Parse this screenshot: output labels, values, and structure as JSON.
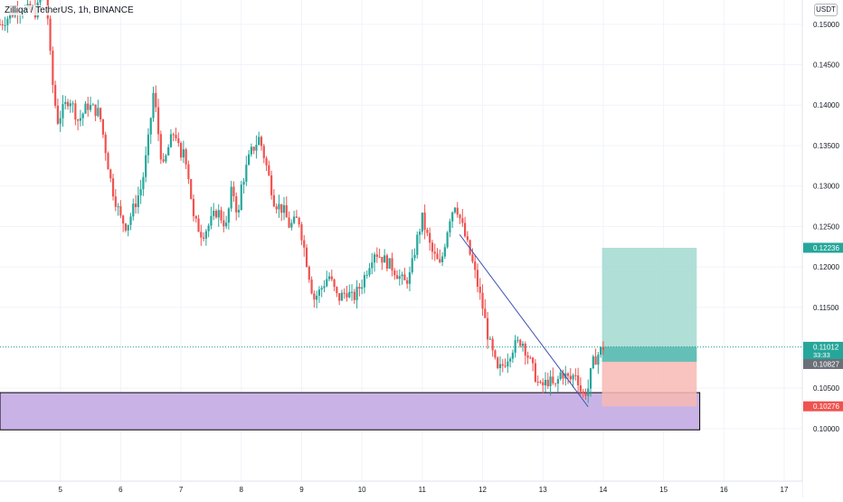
{
  "header": {
    "title": "Zilliqa / TetherUS, 1h, BINANCE",
    "currency": "USDT"
  },
  "colors": {
    "up": "#26a69a",
    "down": "#ef5350",
    "zone_fill": "#c9b3e6",
    "zone_border": "#000000",
    "trendline": "#3f51b5",
    "target_fill": "#a7dcd3",
    "stop_fill": "#f8b8b4",
    "axis_text": "#131722",
    "grid": "#f0f3fa"
  },
  "chart_data": {
    "type": "candlestick",
    "x_ticks": [
      "5",
      "6",
      "7",
      "8",
      "9",
      "10",
      "11",
      "12",
      "13",
      "14",
      "15",
      "16",
      "17"
    ],
    "y_ticks": [
      "0.15000",
      "0.14500",
      "0.14000",
      "0.13500",
      "0.13000",
      "0.12500",
      "0.12000",
      "0.11500",
      "0.11000",
      "0.10500",
      "0.10000"
    ],
    "x_range": [
      4.0,
      17.3
    ],
    "y_range": [
      0.0935,
      0.153
    ],
    "price_labels": [
      {
        "kind": "target",
        "text": "0.12236",
        "value": 0.12236,
        "color": "#26a69a"
      },
      {
        "kind": "last",
        "text": "0.11012",
        "value": 0.11012,
        "color": "#26a69a",
        "extra": "33:33"
      },
      {
        "kind": "entry",
        "text": "0.10827",
        "value": 0.10827,
        "color": "#6b6f78"
      },
      {
        "kind": "stop",
        "text": "0.10276",
        "value": 0.10276,
        "color": "#ef5350"
      }
    ],
    "last_price": 0.11012,
    "position": {
      "x_start": 13.98,
      "x_end": 15.55,
      "entry": 0.10827,
      "target": 0.12236,
      "stop": 0.10276
    },
    "demand_zone": {
      "x_start": 4.0,
      "x_end": 15.6,
      "top": 0.10445,
      "bottom": 0.09985
    },
    "trendline": {
      "x1": 11.62,
      "y1": 0.124,
      "x2": 13.75,
      "y2": 0.1027
    },
    "price_path": [
      [
        4.0,
        0.15
      ],
      [
        4.3,
        0.152
      ],
      [
        4.6,
        0.1515
      ],
      [
        4.75,
        0.155
      ],
      [
        4.8,
        0.15
      ],
      [
        4.85,
        0.144
      ],
      [
        4.95,
        0.138
      ],
      [
        5.15,
        0.141
      ],
      [
        5.3,
        0.138
      ],
      [
        5.45,
        0.14
      ],
      [
        5.65,
        0.139
      ],
      [
        5.75,
        0.1345
      ],
      [
        5.85,
        0.13
      ],
      [
        6.0,
        0.126
      ],
      [
        6.1,
        0.125
      ],
      [
        6.2,
        0.127
      ],
      [
        6.35,
        0.13
      ],
      [
        6.45,
        0.135
      ],
      [
        6.55,
        0.142
      ],
      [
        6.6,
        0.138
      ],
      [
        6.7,
        0.132
      ],
      [
        6.8,
        0.135
      ],
      [
        6.9,
        0.137
      ],
      [
        7.0,
        0.133
      ],
      [
        7.05,
        0.135
      ],
      [
        7.15,
        0.13
      ],
      [
        7.2,
        0.126
      ],
      [
        7.35,
        0.124
      ],
      [
        7.45,
        0.125
      ],
      [
        7.6,
        0.127
      ],
      [
        7.75,
        0.125
      ],
      [
        7.85,
        0.13
      ],
      [
        7.95,
        0.126
      ],
      [
        8.0,
        0.13
      ],
      [
        8.15,
        0.134
      ],
      [
        8.3,
        0.136
      ],
      [
        8.4,
        0.133
      ],
      [
        8.55,
        0.128
      ],
      [
        8.7,
        0.127
      ],
      [
        8.8,
        0.125
      ],
      [
        8.95,
        0.126
      ],
      [
        9.1,
        0.12
      ],
      [
        9.2,
        0.116
      ],
      [
        9.3,
        0.117
      ],
      [
        9.45,
        0.119
      ],
      [
        9.6,
        0.116
      ],
      [
        9.75,
        0.117
      ],
      [
        9.85,
        0.116
      ],
      [
        10.0,
        0.118
      ],
      [
        10.1,
        0.12
      ],
      [
        10.2,
        0.122
      ],
      [
        10.35,
        0.121
      ],
      [
        10.5,
        0.12
      ],
      [
        10.7,
        0.118
      ],
      [
        10.8,
        0.119
      ],
      [
        10.9,
        0.123
      ],
      [
        11.0,
        0.126
      ],
      [
        11.15,
        0.122
      ],
      [
        11.3,
        0.12
      ],
      [
        11.45,
        0.126
      ],
      [
        11.55,
        0.128
      ],
      [
        11.7,
        0.124
      ],
      [
        11.85,
        0.12
      ],
      [
        12.0,
        0.115
      ],
      [
        12.1,
        0.111
      ],
      [
        12.25,
        0.107
      ],
      [
        12.35,
        0.108
      ],
      [
        12.5,
        0.11
      ],
      [
        12.65,
        0.111
      ],
      [
        12.8,
        0.108
      ],
      [
        12.95,
        0.105
      ],
      [
        13.1,
        0.106
      ],
      [
        13.2,
        0.105
      ],
      [
        13.3,
        0.107
      ],
      [
        13.45,
        0.106
      ],
      [
        13.55,
        0.107
      ],
      [
        13.65,
        0.104
      ],
      [
        13.75,
        0.105
      ],
      [
        13.82,
        0.108
      ],
      [
        13.9,
        0.109
      ],
      [
        14.0,
        0.1101
      ]
    ]
  }
}
